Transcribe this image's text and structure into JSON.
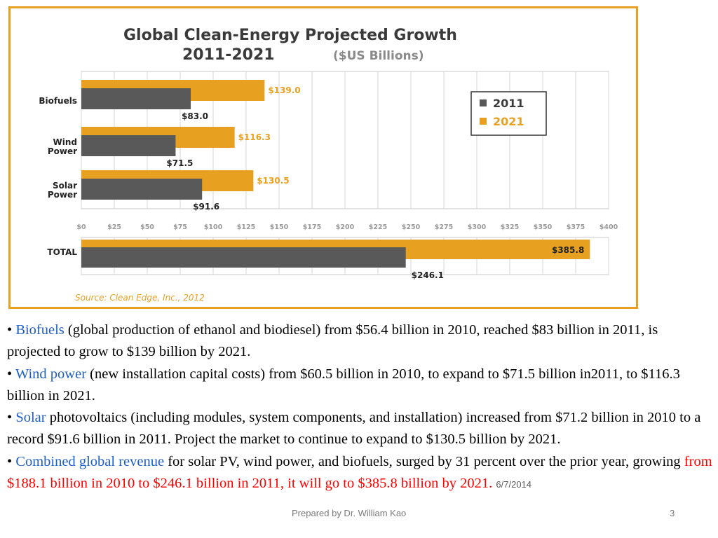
{
  "chart_data": {
    "type": "bar",
    "orientation": "horizontal",
    "title": "Global Clean-Energy Projected Growth",
    "title_line2": "2011-2021",
    "title_unit": "($US Billions)",
    "categories": [
      {
        "line1": "Biofuels",
        "line2": ""
      },
      {
        "line1": "Wind",
        "line2": "Power"
      },
      {
        "line1": "Solar",
        "line2": "Power"
      }
    ],
    "series": [
      {
        "name": "2011",
        "color": "#595959",
        "values": [
          83.0,
          71.5,
          91.6
        ],
        "labels": [
          "$83.0",
          "$71.5",
          "$91.6"
        ]
      },
      {
        "name": "2021",
        "color": "#e8a020",
        "values": [
          139.0,
          116.3,
          130.5
        ],
        "labels": [
          "$139.0",
          "$116.3",
          "$130.5"
        ]
      }
    ],
    "total": {
      "category": "TOTAL",
      "values": [
        246.1,
        385.8
      ],
      "labels": [
        "$246.1",
        "$385.8"
      ]
    },
    "xlim": [
      0,
      400
    ],
    "x_ticks": [
      "$0",
      "$25",
      "$50",
      "$75",
      "$100",
      "$125",
      "$150",
      "$175",
      "$200",
      "$225",
      "$250",
      "$275",
      "$300",
      "$325",
      "$350",
      "$375",
      "$400"
    ],
    "grid": true,
    "legend_position": "top-right",
    "source": "Source: Clean Edge, Inc., 2012"
  },
  "bullets": [
    {
      "bullet": "• ",
      "highlight": "Biofuels",
      "text": " (global production  of  ethanol and biodiesel) from $56.4 billion in 2010, reached $83 billion in 2011,  is projected to grow to $139 billion by 2021."
    },
    {
      "bullet": "•  ",
      "highlight": "Wind power",
      "text": " (new installation capital costs)  from $60.5 billion in 2010, to expand to $71.5 billion in2011,  to $116.3 billion in 2021."
    },
    {
      "bullet": "• ",
      "highlight": "Solar",
      "text": " photovoltaics (including modules, system components, and installation) increased from $71.2 billion in 2010 to a record $91.6 billion in 2011. Project the market to continue to expand to $130.5 billion by 2021."
    },
    {
      "bullet": "• ",
      "highlight": "Combined global revenue",
      "text": " for solar PV, wind power, and biofuels,  surged by 31 percent over the prior year, growing ",
      "red_text": "from $188.1 billion in 2010 to $246.1 billion in 2011, it will go to $385.8 billion by 2021.",
      "date": "6/7/2014"
    }
  ],
  "footer": {
    "center": "Prepared by Dr. William Kao",
    "page_number": "3"
  }
}
